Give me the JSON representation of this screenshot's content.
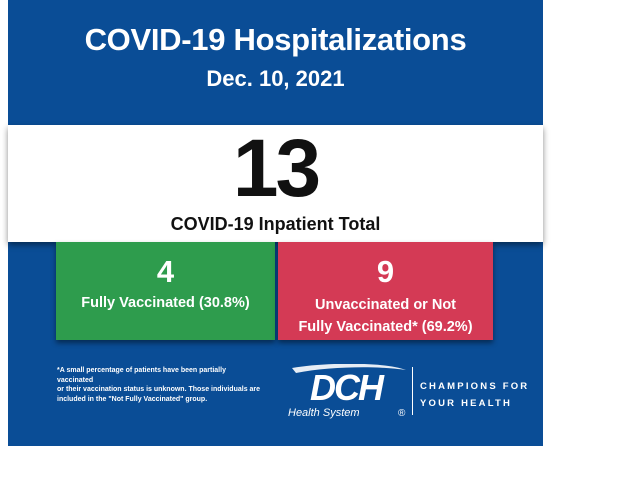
{
  "header": {
    "title": "COVID-19 Hospitalizations",
    "date": "Dec. 10, 2021"
  },
  "total": {
    "value": "13",
    "label": "COVID-19 Inpatient Total"
  },
  "vaccinated": {
    "value": "4",
    "label": "Fully Vaccinated (30.8%)"
  },
  "unvaccinated": {
    "value": "9",
    "label_line1": "Unvaccinated or Not",
    "label_line2": "Fully Vaccinated* (69.2%)"
  },
  "footnote": {
    "line1": "*A small percentage of patients have been partially vaccinated",
    "line2": "or their vaccination status is unknown. Those individuals are",
    "line3": "included in the \"Not Fully Vaccinated\" group."
  },
  "logo": {
    "name": "DCH",
    "subtitle": "Health System",
    "registered": "®",
    "tagline_line1": "CHAMPIONS FOR",
    "tagline_line2": "YOUR HEALTH"
  },
  "colors": {
    "background": "#0a4d96",
    "vaccinated": "#2e9c4d",
    "unvaccinated": "#d43a55"
  }
}
